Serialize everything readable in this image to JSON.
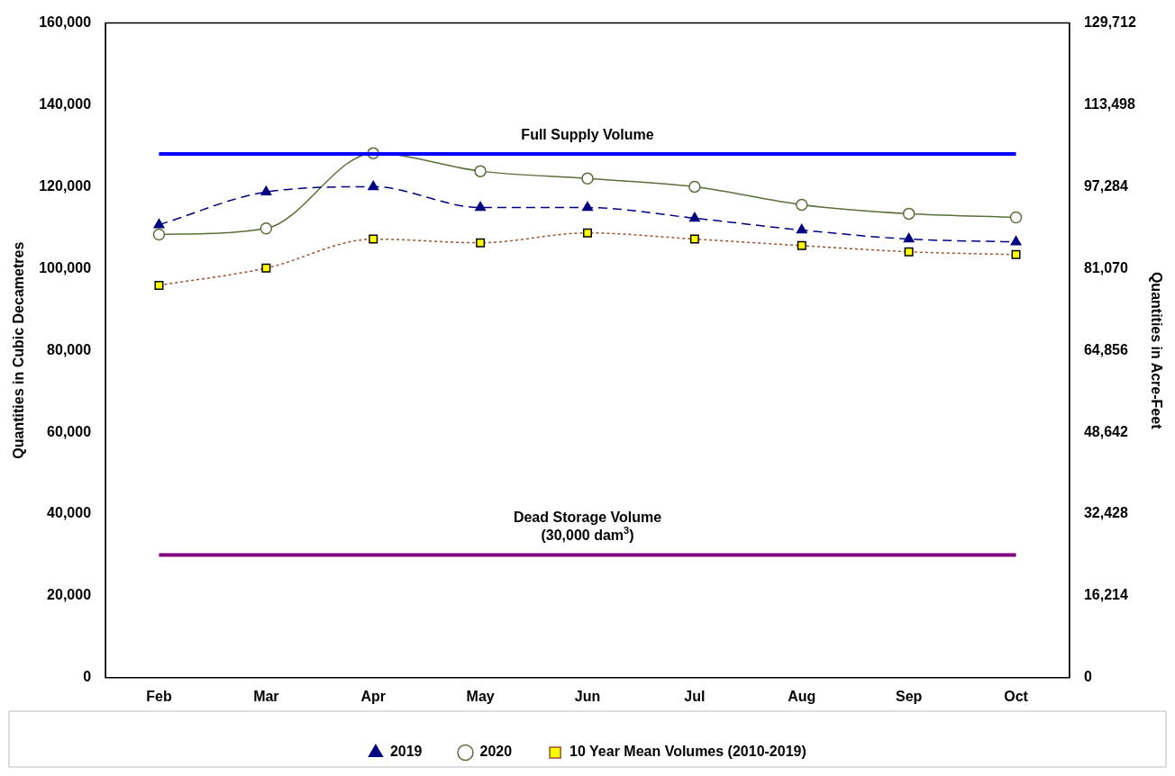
{
  "chart_data": {
    "type": "line",
    "categories": [
      "Feb",
      "Mar",
      "Apr",
      "May",
      "Jun",
      "Jul",
      "Aug",
      "Sep",
      "Oct"
    ],
    "ylabel": "Quantities in Cubic Decametres",
    "y2label": "Quantities in Acre-Feet",
    "ylim": [
      0,
      160000
    ],
    "yticks": [
      0,
      {
        "value": 20000,
        "label": "20,000"
      },
      {
        "value": 40000,
        "label": "40,000"
      },
      {
        "value": 60000,
        "label": "60,000"
      },
      {
        "value": 80000,
        "label": "80,000"
      },
      {
        "value": 100000,
        "label": "100,000"
      },
      {
        "value": 120000,
        "label": "120,000"
      },
      {
        "value": 140000,
        "label": "140,000"
      },
      {
        "value": 160000,
        "label": "160,000"
      }
    ],
    "y2lim": [
      0,
      129712
    ],
    "y2ticks": [
      0,
      {
        "value": 16214,
        "label": "16,214"
      },
      {
        "value": 32428,
        "label": "32,428"
      },
      {
        "value": 48642,
        "label": "48,642"
      },
      {
        "value": 64856,
        "label": "64,856"
      },
      {
        "value": 81070,
        "label": "81,070"
      },
      {
        "value": 97284,
        "label": "97,284"
      },
      {
        "value": 113498,
        "label": "113,498"
      },
      {
        "value": 129712,
        "label": "129,712"
      }
    ],
    "grid": false,
    "legend": "bottom",
    "series": [
      {
        "name": "2019",
        "color": "#000080",
        "marker": "triangle",
        "line_style": "dashed",
        "values": [
          110700,
          118700,
          120000,
          114900,
          114900,
          112300,
          109400,
          107200,
          106500
        ]
      },
      {
        "name": "2020",
        "color": "#5a6e3a",
        "marker": "circle",
        "line_style": "solid",
        "values": [
          108300,
          109800,
          128200,
          123800,
          122000,
          120000,
          115600,
          113400,
          112500
        ]
      },
      {
        "name": "10 Year Mean Volumes (2010-2019)",
        "color": "#a0522d",
        "marker": "square",
        "line_style": "dotted",
        "values": [
          95900,
          100100,
          107200,
          106300,
          108700,
          107200,
          105600,
          104100,
          103400
        ]
      }
    ],
    "ref_lines": [
      {
        "axis": "y",
        "value": 128000,
        "label": "Full Supply Volume",
        "color": "#0000ff"
      },
      {
        "axis": "y",
        "value": 30000,
        "label": "Dead Storage Volume\n(30,000 dam$^{3}$)",
        "color": "#800080"
      }
    ]
  }
}
